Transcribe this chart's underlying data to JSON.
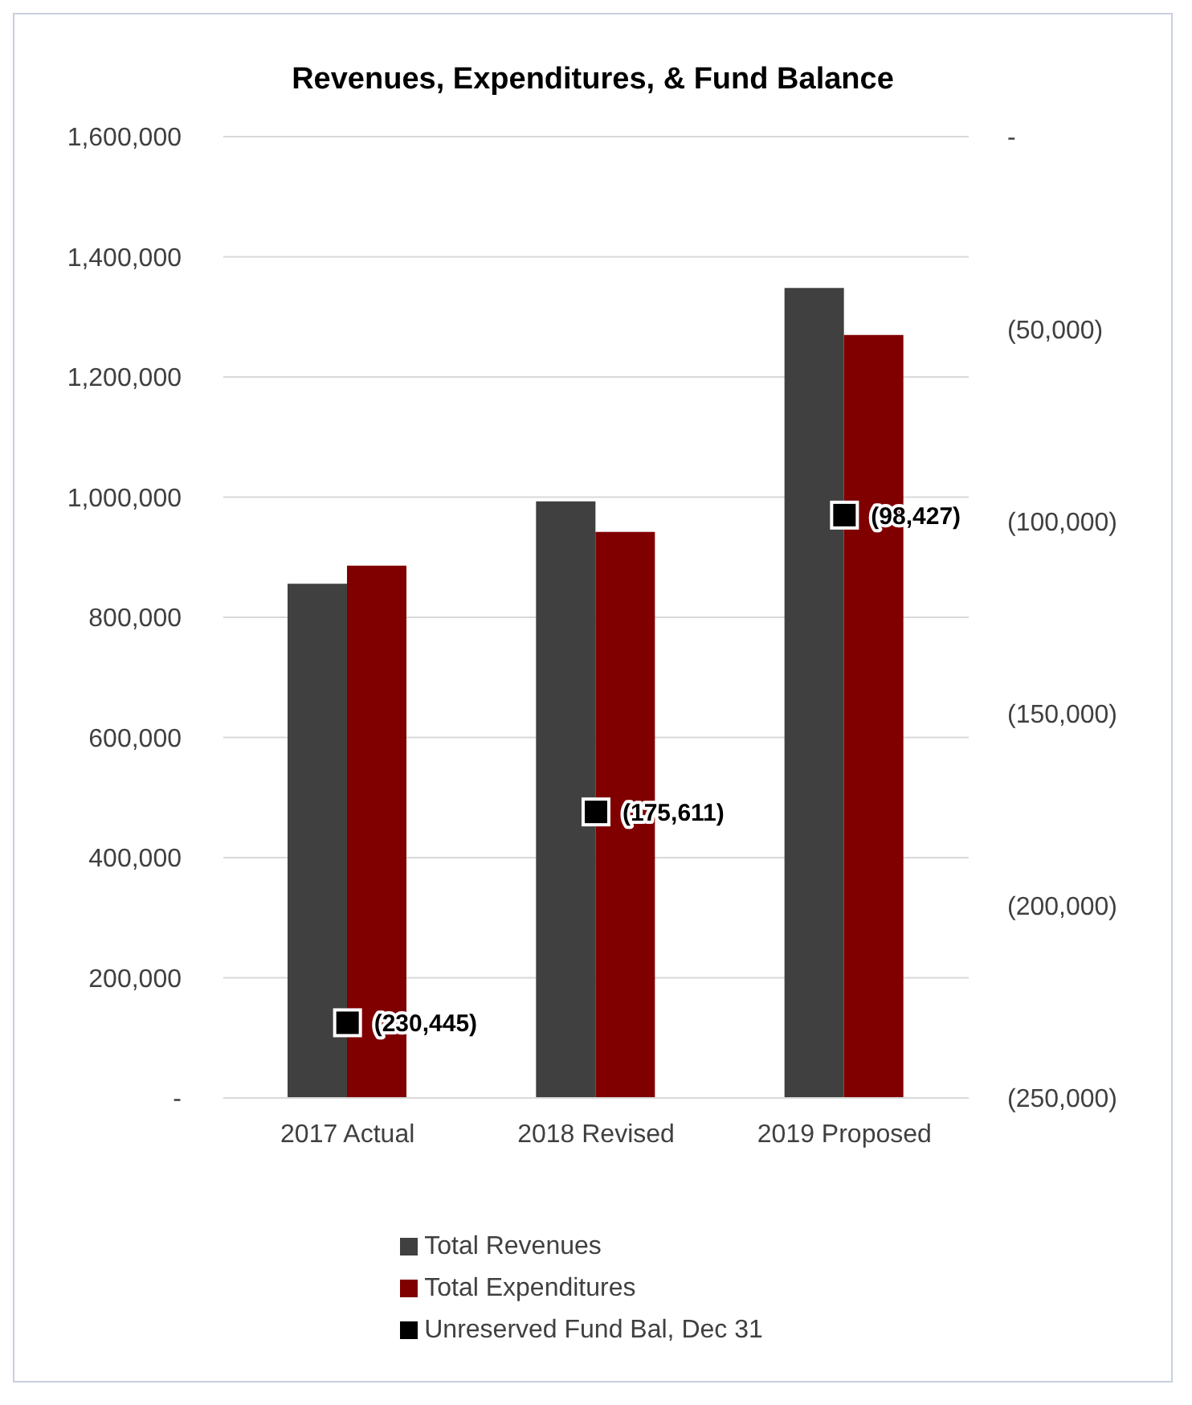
{
  "chart_data": {
    "type": "bar",
    "title": "Revenues, Expenditures, & Fund Balance",
    "categories": [
      "2017 Actual",
      "2018 Revised",
      "2019 Proposed"
    ],
    "series": [
      {
        "name": "Total Revenues",
        "color": "#404040",
        "values": [
          856000,
          993000,
          1348000
        ]
      },
      {
        "name": "Total Expenditures",
        "color": "#800000",
        "values": [
          886000,
          942000,
          1270000
        ]
      },
      {
        "name": "Unreserved Fund Bal, Dec 31",
        "type": "scatter",
        "axis": "y2",
        "marker": "square",
        "color": "#000000",
        "values": [
          -230445,
          -175611,
          -98427
        ],
        "value_labels": [
          "(230,445)",
          "(175,611)",
          "(98,427)"
        ]
      }
    ],
    "ylim": [
      0,
      1600000
    ],
    "yticks": [
      {
        "value": 0,
        "label": "-"
      },
      {
        "value": 200000,
        "label": "200,000"
      },
      {
        "value": 400000,
        "label": "400,000"
      },
      {
        "value": 600000,
        "label": "600,000"
      },
      {
        "value": 800000,
        "label": "800,000"
      },
      {
        "value": 1000000,
        "label": "1,000,000"
      },
      {
        "value": 1200000,
        "label": "1,200,000"
      },
      {
        "value": 1400000,
        "label": "1,400,000"
      },
      {
        "value": 1600000,
        "label": "1,600,000"
      }
    ],
    "y2lim": [
      -250000,
      0
    ],
    "y2ticks": [
      {
        "value": -250000,
        "label": "(250,000)"
      },
      {
        "value": -200000,
        "label": "(200,000)"
      },
      {
        "value": -150000,
        "label": "(150,000)"
      },
      {
        "value": -100000,
        "label": "(100,000)"
      },
      {
        "value": -50000,
        "label": "(50,000)"
      },
      {
        "value": 0,
        "label": "-"
      }
    ],
    "grid": "y",
    "legend": "bottom"
  }
}
